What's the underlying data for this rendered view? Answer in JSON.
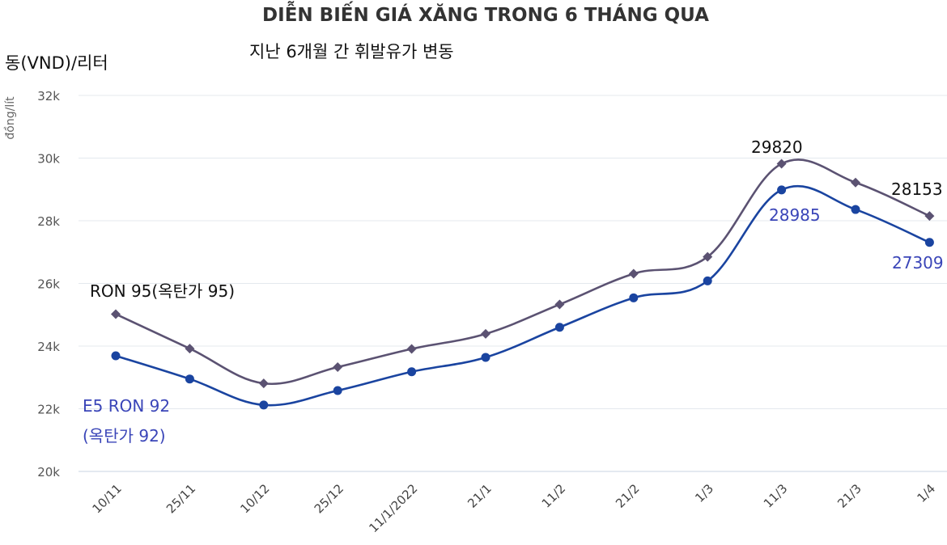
{
  "chart_data": {
    "type": "line",
    "title": "DIỄN BIẾN GIÁ XĂNG TRONG 6 THÁNG QUA",
    "subtitle": "지난 6개월 간 휘발유가 변동",
    "unit_label": "동(VND)/리터",
    "ylabel": "đồng/lít",
    "categories": [
      "10/11",
      "25/11",
      "10/12",
      "25/12",
      "11/1/2022",
      "21/1",
      "11/2",
      "21/2",
      "1/3",
      "11/3",
      "21/3",
      "1/4"
    ],
    "yticks": [
      "20k",
      "22k",
      "24k",
      "26k",
      "28k",
      "30k",
      "32k"
    ],
    "ylim": [
      20000,
      32000
    ],
    "grid": true,
    "series": [
      {
        "name": "RON 95(옥탄가 95)",
        "color": "#5b5272",
        "marker": "diamond",
        "values": [
          25020,
          23920,
          22810,
          23330,
          23910,
          24390,
          25330,
          26310,
          26850,
          29820,
          29220,
          28153
        ]
      },
      {
        "name_line1": "E5 RON 92",
        "name_line2": "(옥탄가 92)",
        "color": "#1a44a0",
        "marker": "circle",
        "values": [
          23690,
          22950,
          22120,
          22580,
          23180,
          23640,
          24600,
          25540,
          26080,
          28985,
          28360,
          27309
        ]
      }
    ],
    "data_labels": {
      "ron95_peak": "29820",
      "ron95_last": "28153",
      "e5_peak": "28985",
      "e5_last": "27309"
    }
  }
}
